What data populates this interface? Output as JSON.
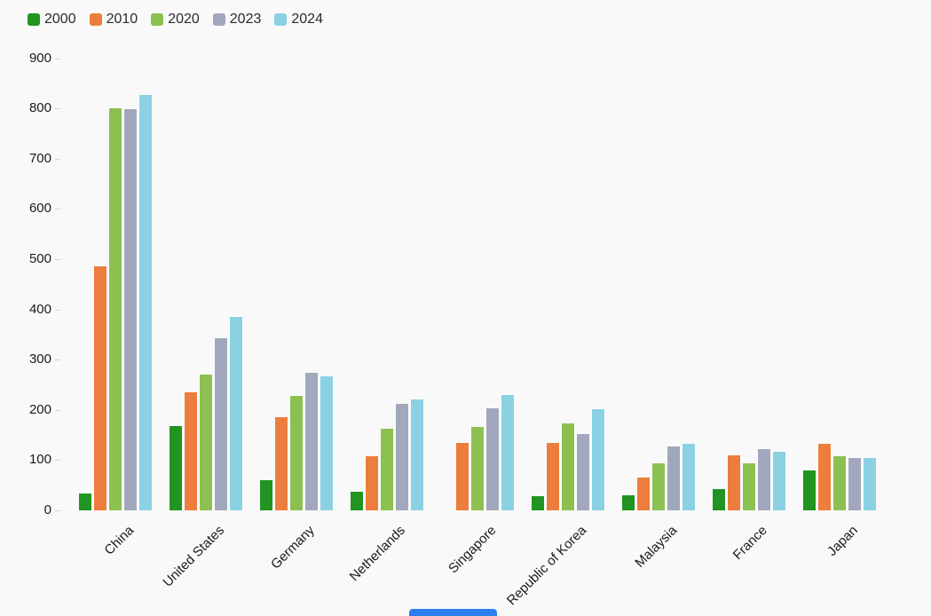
{
  "legend": {
    "items": [
      {
        "label": "2000",
        "color": "#219421"
      },
      {
        "label": "2010",
        "color": "#ed7d3c"
      },
      {
        "label": "2020",
        "color": "#8cc152"
      },
      {
        "label": "2023",
        "color": "#a1a8bd"
      },
      {
        "label": "2024",
        "color": "#8bd1e4"
      }
    ]
  },
  "chart_data": {
    "type": "bar",
    "title": "",
    "xlabel": "",
    "ylabel": "",
    "categories": [
      "China",
      "United States",
      "Germany",
      "Netherlands",
      "Singapore",
      "Republic of Korea",
      "Malaysia",
      "France",
      "Japan"
    ],
    "series": [
      {
        "name": "2000",
        "color": "#219421",
        "values": [
          34,
          168,
          60,
          37,
          null,
          28,
          30,
          42,
          80
        ]
      },
      {
        "name": "2010",
        "color": "#ed7d3c",
        "values": [
          485,
          235,
          185,
          107,
          135,
          135,
          65,
          110,
          132
        ]
      },
      {
        "name": "2020",
        "color": "#8cc152",
        "values": [
          800,
          270,
          228,
          163,
          166,
          174,
          93,
          94,
          108
        ]
      },
      {
        "name": "2023",
        "color": "#a1a8bd",
        "values": [
          798,
          343,
          274,
          212,
          203,
          152,
          128,
          122,
          105
        ]
      },
      {
        "name": "2024",
        "color": "#8bd1e4",
        "values": [
          826,
          385,
          267,
          221,
          229,
          202,
          133,
          117,
          104
        ]
      }
    ],
    "ylim": [
      0,
      900
    ],
    "yticks": [
      0,
      100,
      200,
      300,
      400,
      500,
      600,
      700,
      800,
      900
    ],
    "grid": false,
    "legend_position": "top-left",
    "xlabel_rotation_deg": -45
  },
  "scrollbar": {
    "color": "#2d7ff0"
  }
}
